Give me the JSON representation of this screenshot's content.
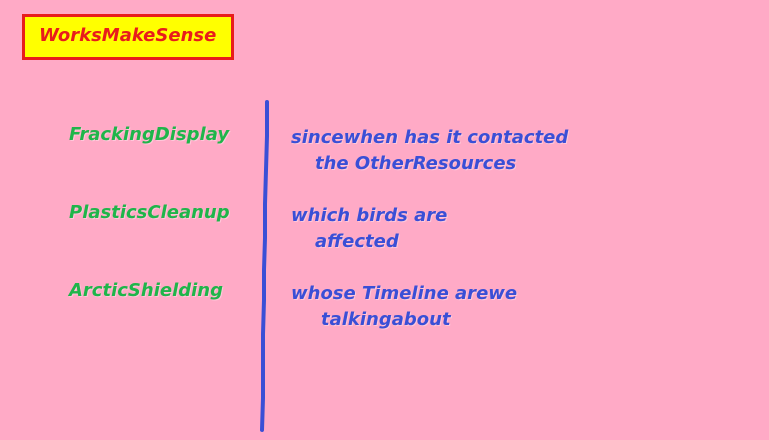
{
  "logo": {
    "text": "WorksMakeSense"
  },
  "rows": [
    {
      "topic": "FrackingDisplay",
      "question_line1": "sincewhen has it contacted",
      "question_line2": "the OtherResources"
    },
    {
      "topic": "PlasticsCleanup",
      "question_line1": "which birds are",
      "question_line2": "affected"
    },
    {
      "topic": "ArcticShielding",
      "question_line1": "whose Timeline arewe",
      "question_line2": "talkingabout"
    }
  ],
  "colors": {
    "background": "#ffaac6",
    "logo_fill": "#ffff00",
    "logo_border": "#e81c1c",
    "topic_text": "#1fb54a",
    "question_text": "#3a4fd6",
    "divider": "#3a4fd6"
  }
}
